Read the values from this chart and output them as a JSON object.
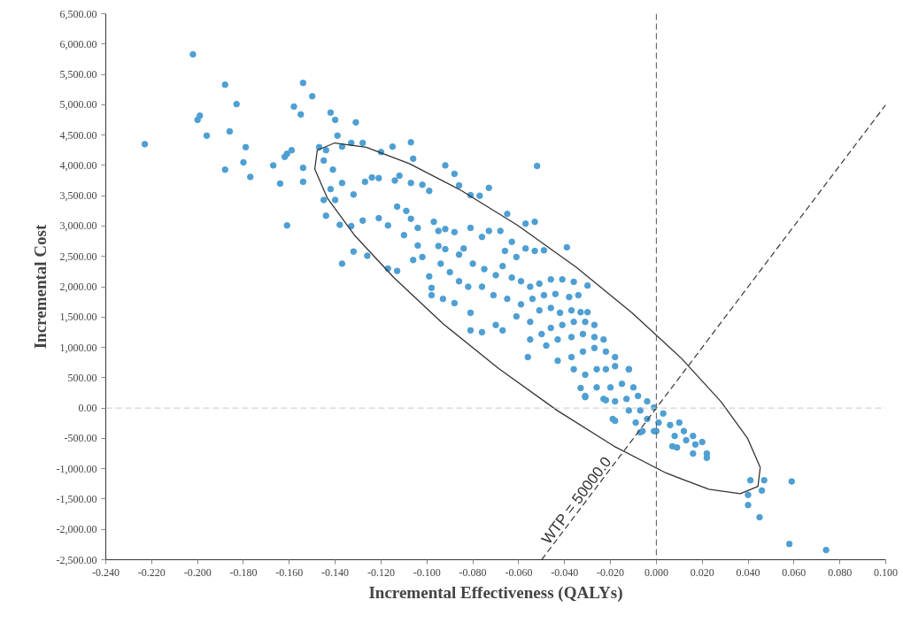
{
  "chart_data": {
    "type": "scatter",
    "xlabel": "Incremental Effectiveness (QALYs)",
    "ylabel": "Incremental Cost",
    "xlim": [
      -0.24,
      0.1
    ],
    "ylim": [
      -2500,
      6500
    ],
    "xticks": [
      {
        "value": -0.24,
        "label": "-0.240"
      },
      {
        "value": -0.22,
        "label": "-0.220"
      },
      {
        "value": -0.2,
        "label": "-0.200"
      },
      {
        "value": -0.18,
        "label": "-0.180"
      },
      {
        "value": -0.16,
        "label": "-0.160"
      },
      {
        "value": -0.14,
        "label": "-0.140"
      },
      {
        "value": -0.12,
        "label": "-0.120"
      },
      {
        "value": -0.1,
        "label": "-0.100"
      },
      {
        "value": -0.08,
        "label": "-0.080"
      },
      {
        "value": -0.06,
        "label": "-0.060"
      },
      {
        "value": -0.04,
        "label": "-0.040"
      },
      {
        "value": -0.02,
        "label": "-0.020"
      },
      {
        "value": 0,
        "label": "0.000"
      },
      {
        "value": 0.02,
        "label": "0.020"
      },
      {
        "value": 0.04,
        "label": "0.040"
      },
      {
        "value": 0.06,
        "label": "0.060"
      },
      {
        "value": 0.08,
        "label": "0.080"
      },
      {
        "value": 0.1,
        "label": "0.100"
      }
    ],
    "yticks": [
      {
        "value": -2500,
        "label": "-2,500.00"
      },
      {
        "value": -2000,
        "label": "-2,000.00"
      },
      {
        "value": -1500,
        "label": "-1,500.00"
      },
      {
        "value": -1000,
        "label": "-1,000.00"
      },
      {
        "value": -500,
        "label": "-500.00"
      },
      {
        "value": 0,
        "label": "0.00"
      },
      {
        "value": 500,
        "label": "500.00"
      },
      {
        "value": 1000,
        "label": "1,000.00"
      },
      {
        "value": 1500,
        "label": "1,500.00"
      },
      {
        "value": 2000,
        "label": "2,000.00"
      },
      {
        "value": 2500,
        "label": "2,500.00"
      },
      {
        "value": 3000,
        "label": "3,000.00"
      },
      {
        "value": 3500,
        "label": "3,500.00"
      },
      {
        "value": 4000,
        "label": "4,000.00"
      },
      {
        "value": 4500,
        "label": "4,500.00"
      },
      {
        "value": 5000,
        "label": "5,000.00"
      },
      {
        "value": 5500,
        "label": "5,500.00"
      },
      {
        "value": 6000,
        "label": "6,000.00"
      },
      {
        "value": 6500,
        "label": "6,500.00"
      }
    ],
    "grid": false,
    "ref_lines": [
      {
        "axis": "x",
        "value": 0,
        "color": "#555555",
        "line_style": "dashed"
      },
      {
        "axis": "y",
        "value": 0,
        "color": "#c8c8c8",
        "line_style": "dashed"
      }
    ],
    "annotations": [
      "WTP = 50000.0"
    ],
    "series": [
      {
        "color": "#4e9fd3",
        "marker": "circle",
        "x": [
          -0.223,
          -0.202,
          -0.188,
          -0.183,
          -0.199,
          -0.2,
          -0.196,
          -0.186,
          -0.188,
          -0.179,
          -0.18,
          -0.177,
          -0.167,
          -0.164,
          -0.162,
          -0.161,
          -0.159,
          -0.161,
          -0.154,
          -0.154,
          -0.158,
          -0.155,
          -0.154,
          -0.15,
          -0.142,
          -0.14,
          -0.131,
          -0.147,
          -0.144,
          -0.139,
          -0.137,
          -0.133,
          -0.145,
          -0.141,
          -0.137,
          -0.132,
          -0.142,
          -0.145,
          -0.14,
          -0.144,
          -0.138,
          -0.133,
          -0.132,
          -0.137,
          -0.128,
          -0.12,
          -0.115,
          -0.107,
          -0.106,
          -0.127,
          -0.124,
          -0.121,
          -0.114,
          -0.112,
          -0.107,
          -0.102,
          -0.099,
          -0.092,
          -0.088,
          -0.086,
          -0.081,
          -0.077,
          -0.073,
          -0.065,
          -0.052,
          -0.057,
          -0.053,
          -0.039,
          -0.126,
          -0.117,
          -0.113,
          -0.128,
          -0.121,
          -0.117,
          -0.113,
          -0.109,
          -0.107,
          -0.104,
          -0.11,
          -0.104,
          -0.102,
          -0.106,
          -0.099,
          -0.098,
          -0.098,
          -0.097,
          -0.095,
          -0.092,
          -0.088,
          -0.095,
          -0.092,
          -0.086,
          -0.094,
          -0.09,
          -0.086,
          -0.093,
          -0.088,
          -0.082,
          -0.081,
          -0.084,
          -0.081,
          -0.076,
          -0.073,
          -0.068,
          -0.08,
          -0.075,
          -0.07,
          -0.076,
          -0.071,
          -0.076,
          -0.081,
          -0.067,
          -0.07,
          -0.066,
          -0.063,
          -0.061,
          -0.057,
          -0.053,
          -0.049,
          -0.067,
          -0.063,
          -0.059,
          -0.055,
          -0.051,
          -0.046,
          -0.041,
          -0.036,
          -0.03,
          -0.065,
          -0.059,
          -0.054,
          -0.049,
          -0.044,
          -0.038,
          -0.034,
          -0.03,
          -0.061,
          -0.055,
          -0.051,
          -0.046,
          -0.042,
          -0.037,
          -0.033,
          -0.056,
          -0.055,
          -0.05,
          -0.046,
          -0.041,
          -0.036,
          -0.031,
          -0.027,
          -0.048,
          -0.043,
          -0.037,
          -0.032,
          -0.027,
          -0.023,
          -0.043,
          -0.037,
          -0.032,
          -0.027,
          -0.022,
          -0.018,
          -0.036,
          -0.031,
          -0.026,
          -0.022,
          -0.018,
          -0.012,
          -0.031,
          -0.023,
          -0.026,
          -0.02,
          -0.015,
          -0.01,
          -0.018,
          -0.013,
          -0.008,
          -0.004,
          -0.012,
          -0.007,
          -0.001,
          0.003,
          -0.009,
          -0.004,
          0.001,
          0.0,
          -0.019,
          -0.007,
          0.006,
          0.01,
          0.008,
          0.012,
          0.013,
          0.016,
          0.017,
          0.02,
          0.007,
          0.009,
          0.016,
          0.022,
          0.022,
          -0.012,
          -0.022,
          -0.031,
          -0.033,
          -0.018,
          -0.006,
          -0.001,
          0.041,
          0.047,
          0.059,
          0.04,
          0.046,
          0.04,
          0.045,
          0.058,
          0.074
        ],
        "values": [
          4350,
          5830,
          5330,
          5010,
          4820,
          4750,
          4490,
          4560,
          3930,
          4300,
          4050,
          3810,
          4000,
          3700,
          4140,
          4190,
          4250,
          3010,
          3960,
          3730,
          4970,
          4840,
          5360,
          5140,
          4870,
          4750,
          4710,
          4300,
          4250,
          4490,
          4310,
          4370,
          4080,
          3930,
          3710,
          3520,
          3610,
          3430,
          3430,
          3170,
          3020,
          3000,
          2580,
          2380,
          4370,
          4220,
          4310,
          4380,
          4110,
          3730,
          3800,
          3790,
          3750,
          3830,
          3710,
          3680,
          3580,
          4000,
          3860,
          3670,
          3510,
          3500,
          3630,
          3200,
          3990,
          3040,
          3070,
          2650,
          2510,
          2300,
          2260,
          3090,
          3130,
          3010,
          3320,
          3250,
          3120,
          2970,
          2850,
          2680,
          2490,
          2440,
          2170,
          1980,
          1860,
          3070,
          2920,
          2950,
          2900,
          2670,
          2620,
          2530,
          2380,
          2240,
          2090,
          1800,
          1730,
          2000,
          1570,
          2630,
          2970,
          2820,
          2920,
          2920,
          2380,
          2290,
          2190,
          2000,
          1860,
          1250,
          1280,
          1280,
          1370,
          2590,
          2740,
          2490,
          2630,
          2590,
          2600,
          2340,
          2150,
          2090,
          2000,
          2050,
          2120,
          2120,
          2080,
          2020,
          1800,
          1710,
          1800,
          1860,
          1880,
          1830,
          1860,
          1580,
          1510,
          1420,
          1610,
          1650,
          1570,
          1610,
          1580,
          840,
          1130,
          1220,
          1320,
          1370,
          1420,
          1420,
          1370,
          1030,
          1130,
          1170,
          1220,
          1170,
          1130,
          780,
          840,
          930,
          990,
          930,
          840,
          640,
          550,
          640,
          640,
          690,
          640,
          200,
          150,
          340,
          340,
          400,
          340,
          110,
          150,
          200,
          110,
          -40,
          -40,
          10,
          -90,
          -240,
          -180,
          -240,
          -380,
          -180,
          -400,
          -280,
          -240,
          -460,
          -380,
          -530,
          -460,
          -600,
          -560,
          -630,
          -650,
          -750,
          -750,
          -820,
          640,
          130,
          180,
          330,
          -210,
          -380,
          -380,
          -1190,
          -1190,
          -1210,
          -1430,
          -1360,
          -1600,
          -1800,
          -2240,
          -2340
        ]
      },
      {
        "type": "line",
        "color": "#333333",
        "line_style": "solid",
        "x": [
          -0.1489,
          -0.1434,
          -0.1316,
          -0.1144,
          -0.093,
          -0.0687,
          -0.0432,
          -0.0184,
          0.0042,
          0.0229,
          0.0366,
          0.0443,
          0.0453
        ],
        "values": [
          3940,
          3460,
          2850,
          2150,
          1390,
          650,
          -40,
          -630,
          -1070,
          -1340,
          -1410,
          -1290,
          -980
        ]
      },
      {
        "type": "line",
        "color": "#333333",
        "line_style": "solid",
        "x": [
          -0.1489,
          -0.1478,
          -0.1402,
          -0.1265,
          -0.1077,
          -0.0852,
          -0.0604,
          -0.0349,
          -0.0106,
          0.0109,
          0.0281,
          0.0398,
          0.0453
        ],
        "values": [
          3940,
          4250,
          4370,
          4300,
          4030,
          3590,
          3010,
          2320,
          1570,
          820,
          110,
          -500,
          -980
        ]
      },
      {
        "type": "line",
        "color": "#444444",
        "line_style": "dashed",
        "x": [
          -0.05,
          0.1
        ],
        "values": [
          -2500,
          5000
        ]
      }
    ]
  }
}
